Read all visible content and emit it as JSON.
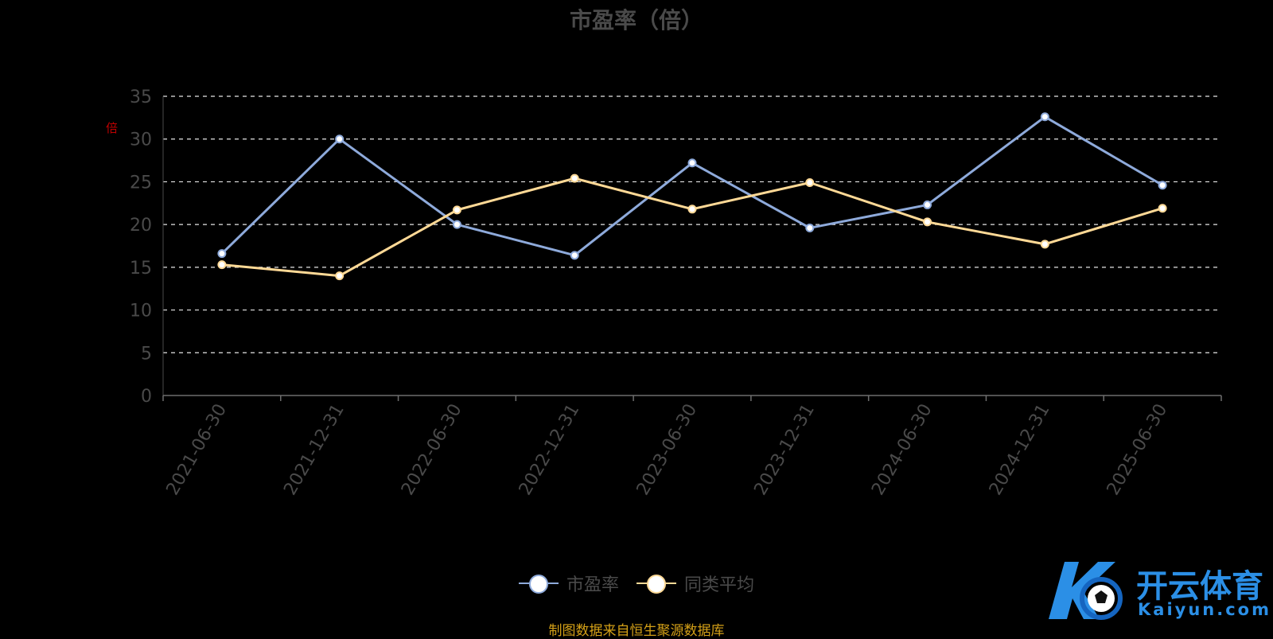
{
  "chart_data": {
    "type": "line",
    "title": "市盈率（倍）",
    "ylabel": "倍",
    "ylim": [
      0,
      35
    ],
    "yticks": [
      0,
      5,
      10,
      15,
      20,
      25,
      30,
      35
    ],
    "grid": true,
    "legend_position": "bottom",
    "categories": [
      "2021-06-30",
      "2021-12-31",
      "2022-06-30",
      "2022-12-31",
      "2023-06-30",
      "2023-12-31",
      "2024-06-30",
      "2024-12-31",
      "2025-06-30"
    ],
    "series": [
      {
        "name": "市盈率",
        "color": "#8eaadb",
        "values": [
          16.6,
          30.0,
          20.0,
          16.4,
          27.2,
          19.6,
          22.3,
          32.6,
          24.6
        ]
      },
      {
        "name": "同类平均",
        "color": "#ffd996",
        "values": [
          15.3,
          14.0,
          21.7,
          25.4,
          21.8,
          24.9,
          20.3,
          17.7,
          21.9
        ]
      }
    ]
  },
  "source_note": "制图数据来自恒生聚源数据库",
  "watermark": {
    "name_cn": "开云体育",
    "name_en": "Kaiyun.com",
    "color": "#2b8fe6"
  }
}
